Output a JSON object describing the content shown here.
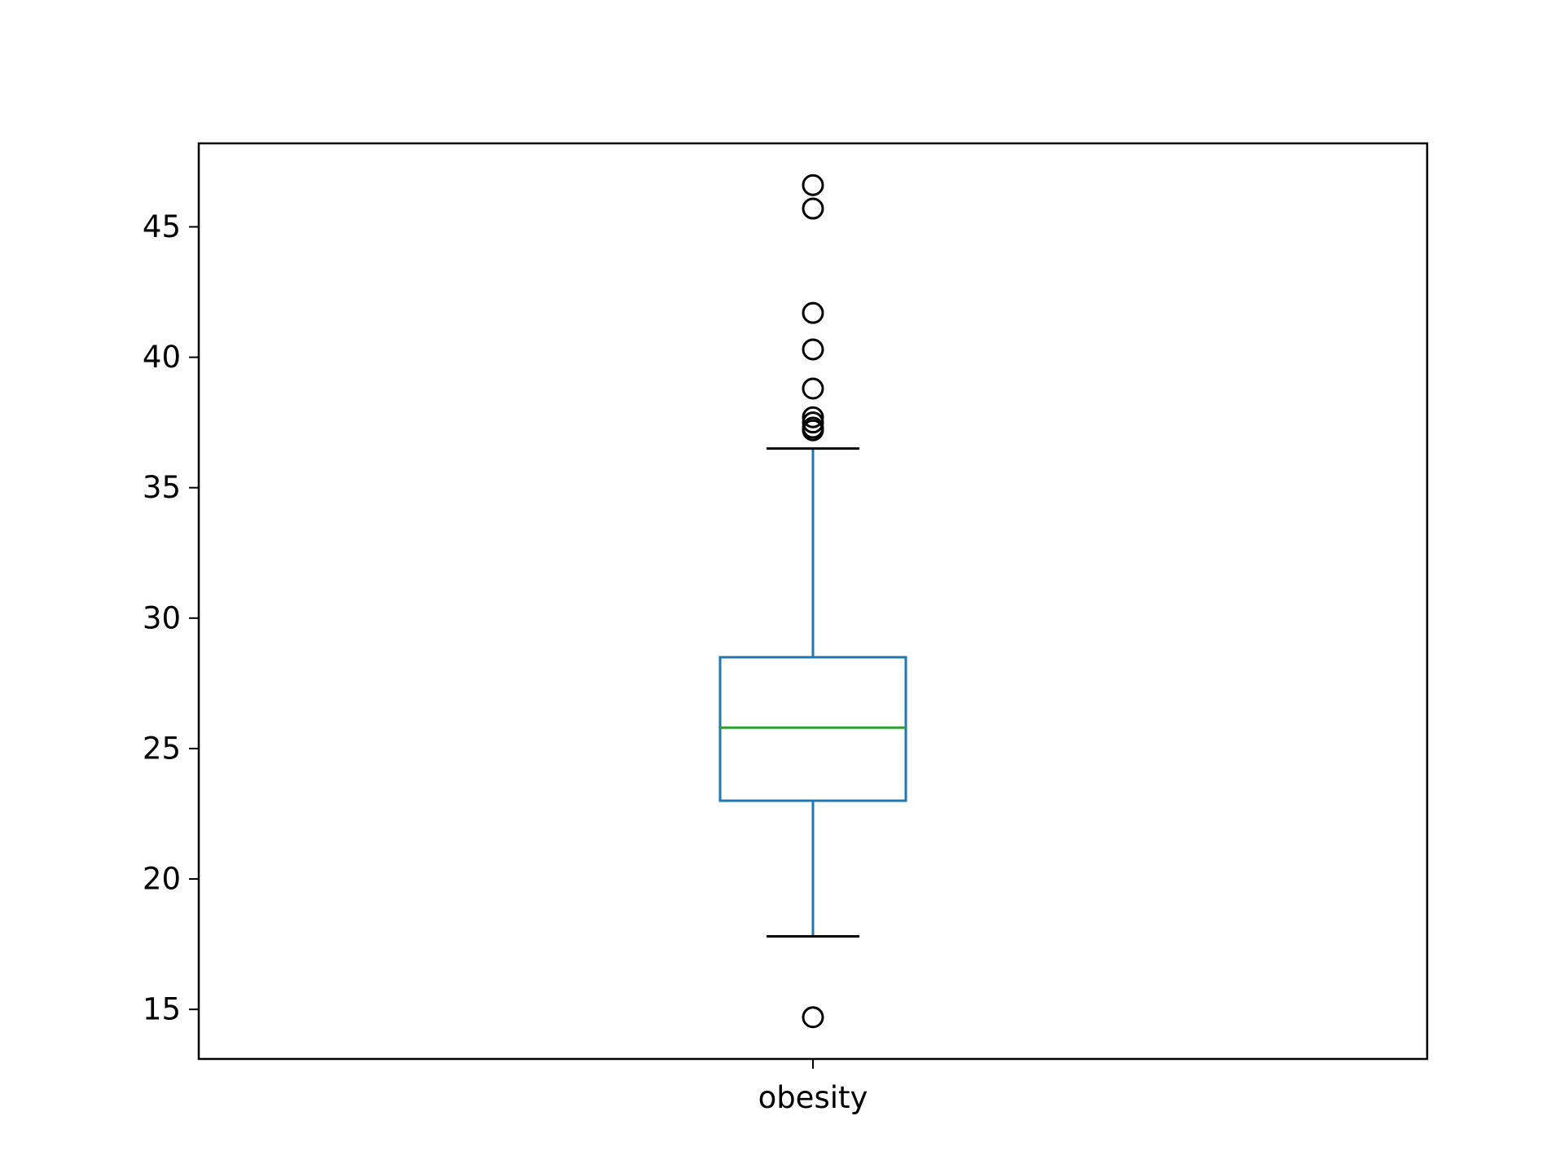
{
  "chart_data": {
    "type": "box",
    "title": "",
    "xlabel": "",
    "ylabel": "",
    "categories": [
      "obesity"
    ],
    "ylim": [
      13.1,
      48.2
    ],
    "yticks": [
      15,
      20,
      25,
      30,
      35,
      40,
      45
    ],
    "grid": false,
    "boxes": [
      {
        "category": "obesity",
        "whisker_low": 17.8,
        "q1": 23.0,
        "median": 25.8,
        "q3": 28.5,
        "whisker_high": 36.5,
        "outliers": [
          46.6,
          45.7,
          41.7,
          40.3,
          38.8,
          37.7,
          37.5,
          37.3,
          37.2,
          14.7
        ]
      }
    ],
    "colors": {
      "box": "#1f77b4",
      "median": "#2ca02c",
      "caps": "#000000",
      "outliers": "#000000",
      "axes": "#000000"
    }
  }
}
